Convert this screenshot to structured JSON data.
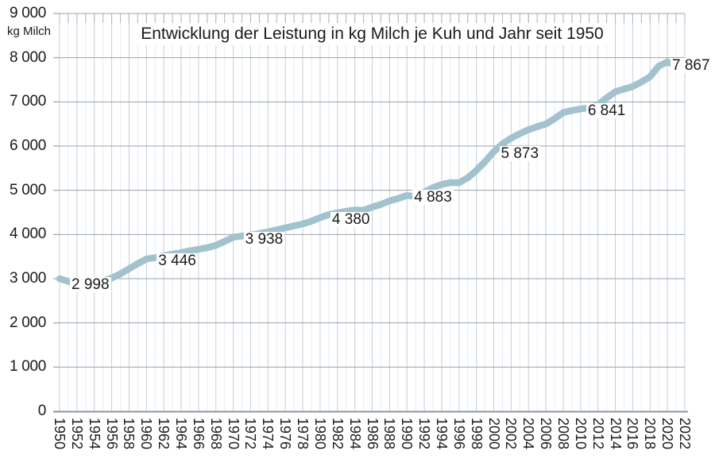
{
  "chart_data": {
    "type": "line",
    "title": "Entwicklung der Leistung in kg Milch je Kuh und Jahr seit 1950",
    "ylabel": "kg Milch",
    "xlabel": "",
    "ylim": [
      0,
      9000
    ],
    "y_tick_step": 1000,
    "y_tick_labels": [
      "9 000",
      "8 000",
      "7 000",
      "6 000",
      "5 000",
      "4 000",
      "3 000",
      "2 000",
      "1 000",
      "0"
    ],
    "x_tick_labels": [
      "1950",
      "1952",
      "1954",
      "1956",
      "1958",
      "1960",
      "1962",
      "1964",
      "1966",
      "1968",
      "1970",
      "1972",
      "1974",
      "1976",
      "1978",
      "1980",
      "1982",
      "1984",
      "1986",
      "1988",
      "1990",
      "1992",
      "1994",
      "1996",
      "1998",
      "2000",
      "2002",
      "2004",
      "2006",
      "2008",
      "2010",
      "2012",
      "2014",
      "2016",
      "2018",
      "2020",
      "2022"
    ],
    "grid": true,
    "legend": "none",
    "series": [
      {
        "name": "kg Milch je Kuh und Jahr",
        "x": [
          1950,
          1951,
          1952,
          1953,
          1954,
          1955,
          1956,
          1957,
          1958,
          1959,
          1960,
          1961,
          1962,
          1963,
          1964,
          1965,
          1966,
          1967,
          1968,
          1969,
          1970,
          1971,
          1972,
          1973,
          1974,
          1975,
          1976,
          1977,
          1978,
          1979,
          1980,
          1981,
          1982,
          1983,
          1984,
          1985,
          1986,
          1987,
          1988,
          1989,
          1990,
          1991,
          1992,
          1993,
          1994,
          1995,
          1996,
          1997,
          1998,
          1999,
          2000,
          2001,
          2002,
          2003,
          2004,
          2005,
          2006,
          2007,
          2008,
          2009,
          2010,
          2011,
          2012,
          2013,
          2014,
          2015,
          2016,
          2017,
          2018,
          2019,
          2020,
          2021,
          2022
        ],
        "values": [
          2998,
          2940,
          2880,
          2895,
          2915,
          2950,
          3015,
          3110,
          3225,
          3340,
          3446,
          3475,
          3520,
          3555,
          3590,
          3630,
          3665,
          3700,
          3755,
          3845,
          3938,
          3965,
          3990,
          4020,
          4060,
          4105,
          4150,
          4195,
          4240,
          4300,
          4380,
          4450,
          4490,
          4525,
          4555,
          4545,
          4620,
          4680,
          4760,
          4815,
          4883,
          4860,
          4960,
          5060,
          5130,
          5175,
          5170,
          5280,
          5450,
          5650,
          5873,
          6050,
          6180,
          6280,
          6370,
          6440,
          6500,
          6620,
          6760,
          6805,
          6841,
          6865,
          6930,
          7090,
          7230,
          7290,
          7350,
          7450,
          7570,
          7810,
          7905,
          7820,
          7867
        ]
      }
    ],
    "point_labels": [
      {
        "year": 1950,
        "value": 2998,
        "text": "2 998"
      },
      {
        "year": 1960,
        "value": 3446,
        "text": "3 446"
      },
      {
        "year": 1970,
        "value": 3938,
        "text": "3 938"
      },
      {
        "year": 1980,
        "value": 4380,
        "text": "4 380"
      },
      {
        "year": 1990,
        "value": 4883,
        "text": "4 883"
      },
      {
        "year": 2000,
        "value": 5873,
        "text": "5 873"
      },
      {
        "year": 2010,
        "value": 6841,
        "text": "6 841"
      },
      {
        "year": 2022,
        "value": 7867,
        "text": "7 867"
      }
    ],
    "colors": {
      "line": "#a2c2cd",
      "end_marker": "#a2c2cd",
      "grid_horizontal": "#9ba3ab",
      "grid_vertical_major": "#c5d0dc",
      "grid_vertical_minor": "#e8eef4",
      "axis": "#8e959d",
      "top_ticks": "#aab6c2",
      "text": "#1a1a1a"
    }
  }
}
